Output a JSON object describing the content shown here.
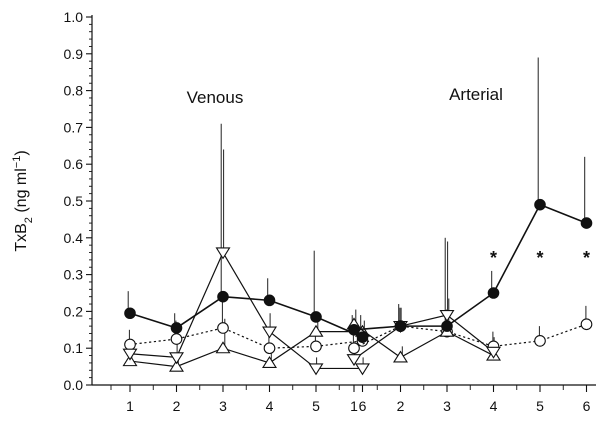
{
  "chart_data": {
    "type": "line",
    "ylabel": "TxB",
    "ylabel_sub": "2",
    "ylabel_units": " (ng ml",
    "ylabel_sup": "−1",
    "ylabel_close": ")",
    "ylim": [
      0.0,
      1.0
    ],
    "yticks": [
      "0.0",
      "0.1",
      "0.2",
      "0.3",
      "0.4",
      "0.5",
      "0.6",
      "0.7",
      "0.8",
      "0.9",
      "1.0"
    ],
    "x": [
      1,
      2,
      3,
      4,
      5,
      6
    ],
    "xtick_labels": [
      "1",
      "2",
      "3",
      "4",
      "5",
      "6"
    ],
    "grid": false,
    "panels": [
      {
        "label": "Venous",
        "series": [
          {
            "marker": "filled-circle",
            "line": "solid",
            "values": [
              0.195,
              0.155,
              0.24,
              0.23,
              0.185,
              0.13
            ],
            "errors": [
              0.06,
              0.04,
              0.47,
              0.06,
              0.18,
              0.06
            ]
          },
          {
            "marker": "open-circle",
            "line": "dotted",
            "values": [
              0.11,
              0.125,
              0.155,
              0.1,
              0.105,
              0.12
            ],
            "errors": [
              0.04,
              0.05,
              0.09,
              0.04,
              0.04,
              0.04
            ]
          },
          {
            "marker": "open-triangle-down",
            "line": "solid",
            "values": [
              0.085,
              0.075,
              0.36,
              0.145,
              0.045,
              0.045
            ],
            "errors": [
              0.04,
              0.05,
              0.28,
              0.05,
              0.03,
              0.03
            ]
          },
          {
            "marker": "open-triangle-up",
            "line": "solid",
            "values": [
              0.065,
              0.05,
              0.1,
              0.06,
              0.145,
              0.145
            ],
            "errors": [
              0.03,
              0.03,
              0.08,
              0.03,
              0.04,
              0.03
            ]
          }
        ],
        "annotations": []
      },
      {
        "label": "Arterial",
        "series": [
          {
            "marker": "filled-circle",
            "line": "solid",
            "values": [
              0.15,
              0.16,
              0.16,
              0.25,
              0.49,
              0.44
            ],
            "errors": [
              0.04,
              0.06,
              0.24,
              0.06,
              0.4,
              0.18
            ]
          },
          {
            "marker": "open-circle",
            "line": "dotted",
            "values": [
              0.1,
              0.16,
              0.145,
              0.105,
              0.12,
              0.165
            ],
            "errors": [
              0.04,
              0.05,
              0.06,
              0.04,
              0.04,
              0.05
            ]
          },
          {
            "marker": "open-triangle-down",
            "line": "solid",
            "values": [
              0.07,
              0.16,
              0.19,
              0.09,
              null,
              null
            ],
            "errors": [
              0.03,
              0.05,
              0.2,
              0.04,
              null,
              null
            ]
          },
          {
            "marker": "open-triangle-up",
            "line": "solid",
            "values": [
              0.165,
              0.075,
              0.145,
              0.08,
              null,
              null
            ],
            "errors": [
              0.04,
              0.03,
              0.09,
              0.03,
              null,
              null
            ]
          }
        ],
        "annotations": [
          {
            "x": 4,
            "y": 0.35,
            "text": "*"
          },
          {
            "x": 5,
            "y": 0.35,
            "text": "*"
          },
          {
            "x": 6,
            "y": 0.35,
            "text": "*"
          }
        ]
      }
    ]
  }
}
